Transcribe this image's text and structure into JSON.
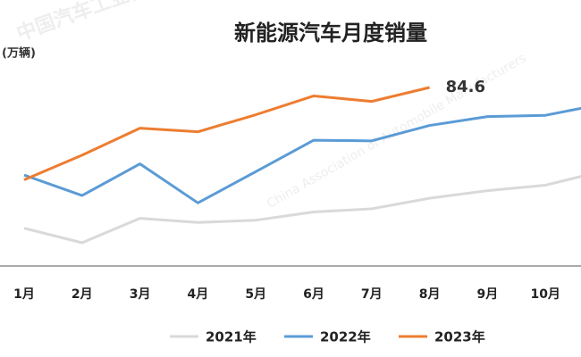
{
  "chart_data": {
    "type": "line",
    "title": "新能源汽车月度销量",
    "y_label": "(万辆)",
    "watermark": [
      "中国汽车工业协会",
      "China Association of Automobile Manufacturers"
    ],
    "categories": [
      "1月",
      "2月",
      "3月",
      "4月",
      "5月",
      "6月",
      "7月",
      "8月",
      "9月",
      "10月",
      null
    ],
    "series": [
      {
        "name": "2021年",
        "color": "#d9d9d9",
        "values": [
          17.9,
          11.0,
          22.6,
          20.6,
          21.7,
          25.6,
          27.1,
          32.1,
          35.7,
          38.3,
          45.0
        ]
      },
      {
        "name": "2022年",
        "color": "#5b9bd5",
        "values": [
          43.1,
          33.4,
          48.4,
          29.9,
          44.7,
          59.6,
          59.3,
          66.6,
          70.8,
          71.4,
          76.8
        ]
      },
      {
        "name": "2023年",
        "color": "#ed7d31",
        "values": [
          40.8,
          52.5,
          65.3,
          63.6,
          71.7,
          80.6,
          78.0,
          84.6,
          null,
          null,
          null
        ]
      }
    ],
    "labeled_point": {
      "series": 2,
      "index": 7
    },
    "ylim": [
      0,
      100
    ]
  }
}
